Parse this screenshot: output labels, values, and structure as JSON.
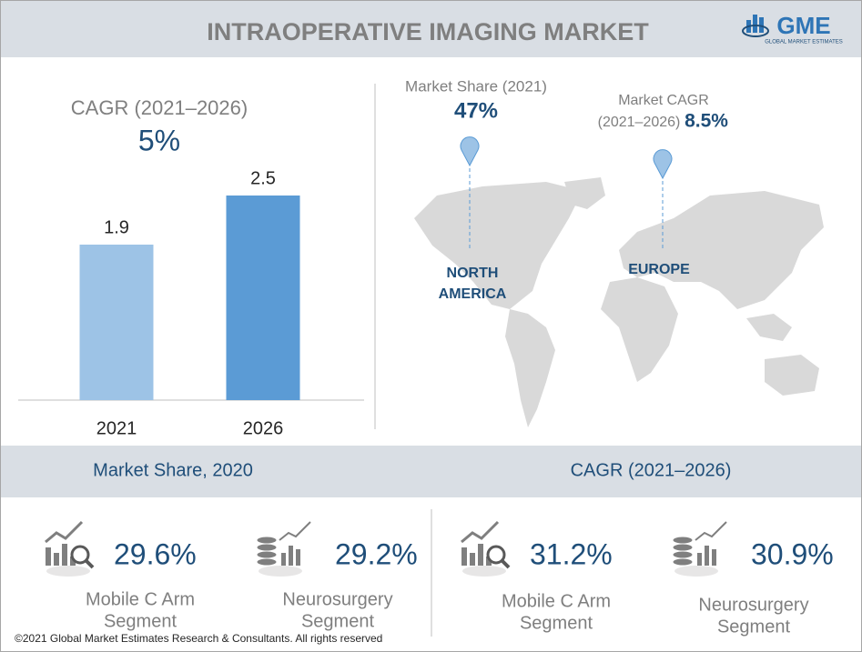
{
  "header": {
    "title": "INTRAOPERATIVE IMAGING MARKET",
    "logo": "GME",
    "logo_subtitle": "GLOBAL MARKET ESTIMATES"
  },
  "chart_data": {
    "type": "bar",
    "title": "CAGR (2021–2026)",
    "subtitle": "5%",
    "categories": [
      "2021",
      "2026"
    ],
    "values": [
      1.9,
      2.5
    ],
    "colors": [
      "#9dc3e6",
      "#5b9bd5"
    ]
  },
  "map": {
    "north_america": {
      "label": "Market Share (2021)",
      "value": "47%",
      "region": [
        "NORTH",
        "AMERICA"
      ]
    },
    "europe": {
      "label": [
        "Market CAGR",
        "(2021–2026)"
      ],
      "value": "8.5%",
      "region": [
        "EUROPE"
      ]
    }
  },
  "market_share": {
    "title": "Market Share, 2020",
    "items": [
      {
        "value": "29.6%",
        "label": [
          "Mobile C Arm",
          "Segment"
        ]
      },
      {
        "value": "29.2%",
        "label": [
          "Neurosurgery",
          "Segment"
        ]
      }
    ]
  },
  "cagr": {
    "title": "CAGR (2021–2026)",
    "items": [
      {
        "value": "31.2%",
        "label": [
          "Mobile C Arm",
          "Segment"
        ]
      },
      {
        "value": "30.9%",
        "label": [
          "Neurosurgery",
          "Segment"
        ]
      }
    ]
  },
  "footer": "©2021 Global Market Estimates Research & Consultants. All rights reserved"
}
